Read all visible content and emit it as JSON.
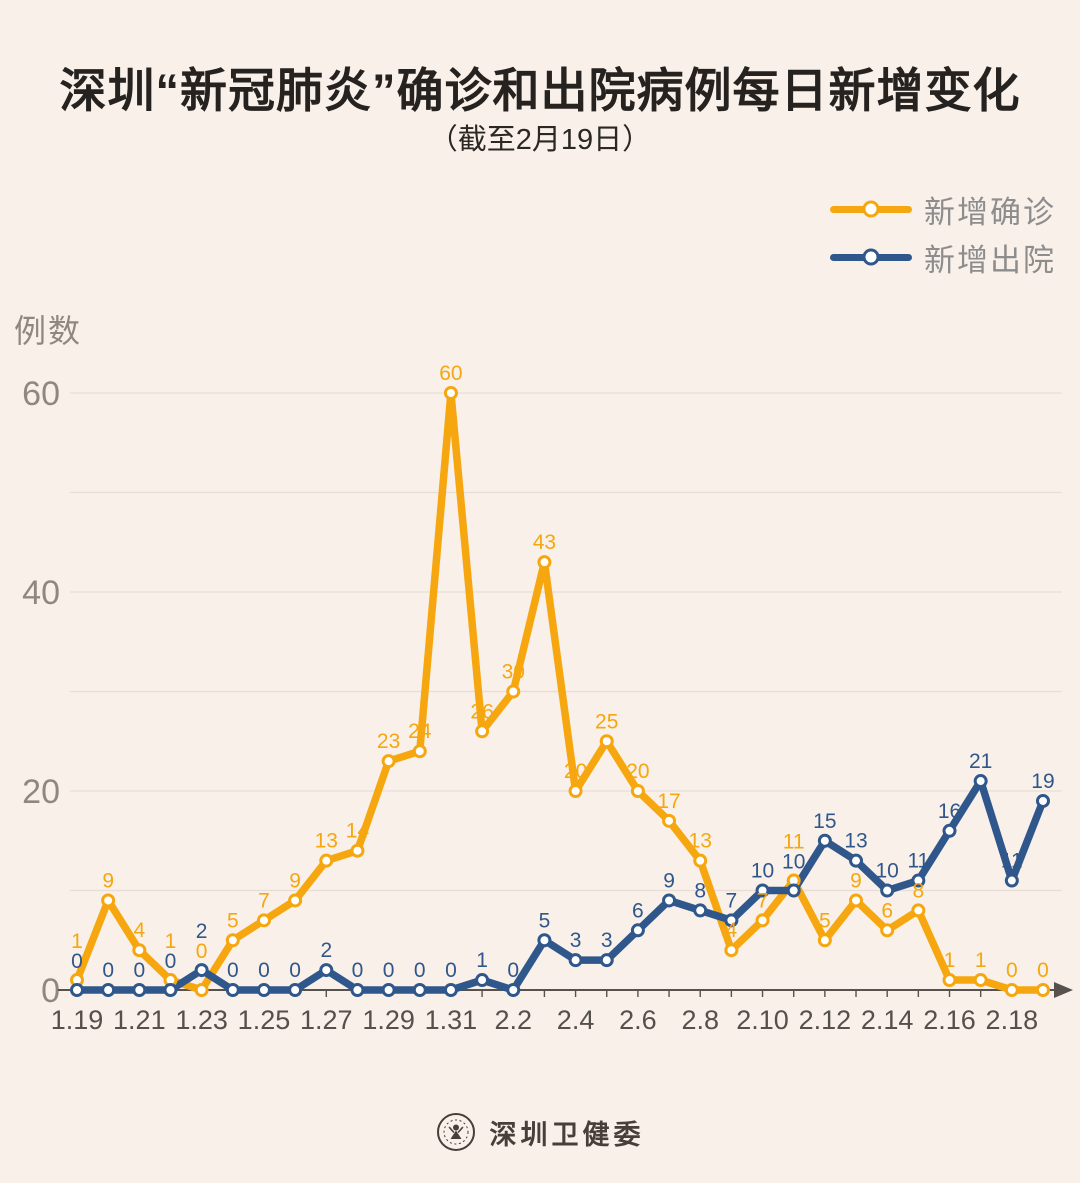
{
  "title": "深圳“新冠肺炎”确诊和出院病例每日新增变化",
  "subtitle": "（截至2月19日）",
  "y_axis_label": "例数",
  "legend": {
    "items": [
      {
        "label": "新增确诊",
        "color": "#F6A70F"
      },
      {
        "label": "新增出院",
        "color": "#30578B"
      }
    ]
  },
  "footer": {
    "source": "深圳卫健委"
  },
  "colors": {
    "background": "#f8f0e9",
    "grid": "#e7dfd7",
    "axis_line": "#57524d",
    "axis_text": "#8f8880",
    "x_label_text": "#55504b",
    "confirmed": "#F6A70F",
    "discharged": "#30578B"
  },
  "chart_data": {
    "type": "line",
    "title": "深圳“新冠肺炎”确诊和出院病例每日新增变化（截至2月19日）",
    "xlabel": "",
    "ylabel": "例数",
    "ylim": [
      0,
      60
    ],
    "yticks": [
      0,
      20,
      40,
      60
    ],
    "gridline_interval": 10,
    "grid": true,
    "legend_position": "top-right",
    "x_label_step": 2,
    "x": [
      "1.19",
      "1.20",
      "1.21",
      "1.22",
      "1.23",
      "1.24",
      "1.25",
      "1.26",
      "1.27",
      "1.28",
      "1.29",
      "1.30",
      "1.31",
      "2.1",
      "2.2",
      "2.3",
      "2.4",
      "2.5",
      "2.6",
      "2.7",
      "2.8",
      "2.9",
      "2.10",
      "2.11",
      "2.12",
      "2.13",
      "2.14",
      "2.15",
      "2.16",
      "2.17",
      "2.18",
      "2.19"
    ],
    "series": [
      {
        "name": "新增确诊",
        "color": "#F6A70F",
        "values": [
          1,
          9,
          4,
          1,
          0,
          5,
          7,
          9,
          13,
          14,
          23,
          24,
          60,
          26,
          30,
          43,
          20,
          25,
          20,
          17,
          13,
          4,
          7,
          11,
          5,
          9,
          6,
          8,
          1,
          1,
          0,
          0
        ]
      },
      {
        "name": "新增出院",
        "color": "#30578B",
        "values": [
          0,
          0,
          0,
          0,
          2,
          0,
          0,
          0,
          2,
          0,
          0,
          0,
          0,
          1,
          0,
          5,
          3,
          3,
          6,
          9,
          8,
          7,
          10,
          10,
          15,
          13,
          10,
          11,
          16,
          21,
          11,
          19
        ]
      }
    ]
  }
}
